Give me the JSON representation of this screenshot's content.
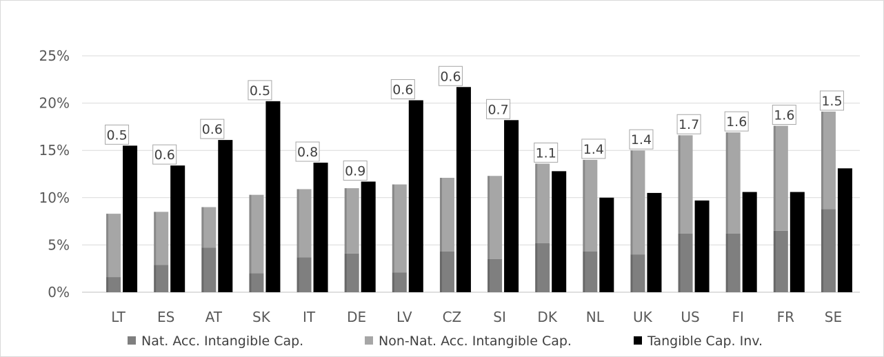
{
  "chart_data": {
    "type": "bar",
    "stacked_series": true,
    "title": "",
    "xlabel": "",
    "ylabel": "",
    "ylim": [
      0,
      0.25
    ],
    "yticks": [
      0,
      0.05,
      0.1,
      0.15,
      0.2,
      0.25
    ],
    "ytick_labels": [
      "0%",
      "5%",
      "10%",
      "15%",
      "20%",
      "25%"
    ],
    "grid": true,
    "legend_position": "bottom",
    "categories": [
      "LT",
      "ES",
      "AT",
      "SK",
      "IT",
      "DE",
      "LV",
      "CZ",
      "SI",
      "DK",
      "NL",
      "UK",
      "US",
      "FI",
      "FR",
      "SE"
    ],
    "series": [
      {
        "name": "Nat. Acc. Intangible Cap.",
        "color": "#7f7f7f",
        "stack": "intangible",
        "values": [
          0.016,
          0.029,
          0.047,
          0.02,
          0.037,
          0.041,
          0.021,
          0.043,
          0.035,
          0.052,
          0.043,
          0.04,
          0.062,
          0.062,
          0.065,
          0.088
        ]
      },
      {
        "name": "Non-Nat. Acc. Intangible Cap.",
        "color": "#a6a6a6",
        "stack": "intangible",
        "values": [
          0.067,
          0.056,
          0.043,
          0.083,
          0.072,
          0.069,
          0.093,
          0.078,
          0.088,
          0.084,
          0.097,
          0.11,
          0.104,
          0.107,
          0.111,
          0.103
        ]
      },
      {
        "name": "Tangible Cap. Inv.",
        "color": "#000000",
        "stack": "tangible",
        "values": [
          0.155,
          0.134,
          0.161,
          0.202,
          0.137,
          0.117,
          0.203,
          0.217,
          0.182,
          0.128,
          0.1,
          0.105,
          0.097,
          0.106,
          0.106,
          0.131
        ]
      }
    ],
    "ratio_labels": [
      "0.5",
      "0.6",
      "0.6",
      "0.5",
      "0.8",
      "0.9",
      "0.6",
      "0.6",
      "0.7",
      "1.1",
      "1.4",
      "1.4",
      "1.7",
      "1.6",
      "1.6",
      "1.5"
    ]
  }
}
